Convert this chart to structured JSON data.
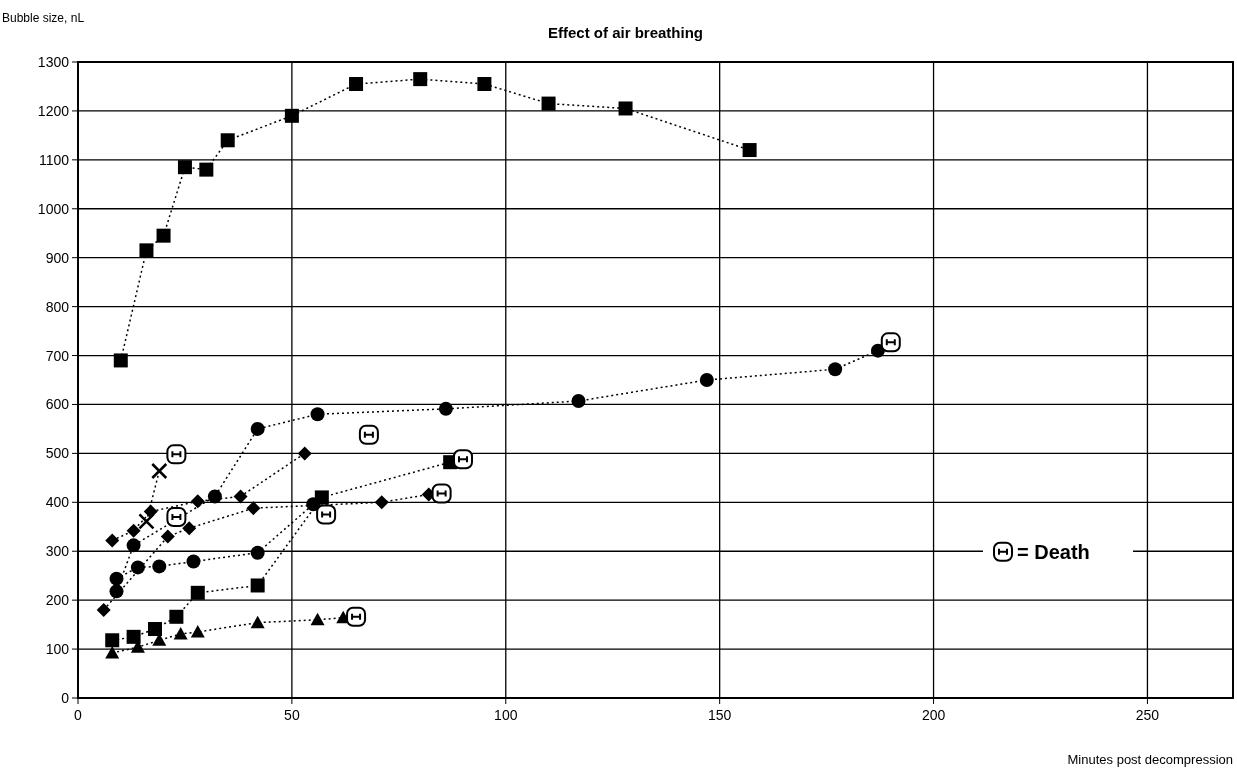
{
  "chart_data": {
    "type": "line",
    "title": "Effect of air breathing",
    "ylabel": "Bubble size, nL",
    "xlabel": "Minutes post decompression",
    "xlim": [
      0,
      270
    ],
    "xticks": [
      0,
      50,
      100,
      150,
      200,
      250
    ],
    "ylim": [
      0,
      1300
    ],
    "yticks": [
      0,
      100,
      200,
      300,
      400,
      500,
      600,
      700,
      800,
      900,
      1000,
      1100,
      1200,
      1300
    ],
    "grid": true,
    "legend": "right",
    "line_style": "dotted",
    "series": [
      {
        "color": "#000000",
        "marker": "square",
        "x": [
          10,
          16,
          20,
          25,
          30,
          35,
          50,
          65,
          80,
          95,
          110,
          128,
          157
        ],
        "values": [
          690,
          915,
          945,
          1085,
          1080,
          1140,
          1190,
          1255,
          1265,
          1255,
          1215,
          1205,
          1120
        ]
      },
      {
        "color": "#000000",
        "marker": "circle",
        "x": [
          9,
          13,
          32,
          42,
          56,
          86,
          117,
          147,
          177,
          187
        ],
        "values": [
          218,
          312,
          412,
          550,
          580,
          591,
          607,
          650,
          672,
          710
        ]
      },
      {
        "color": "#000000",
        "marker": "diamond",
        "x": [
          8,
          13,
          17,
          28,
          38,
          53
        ],
        "values": [
          322,
          342,
          381,
          402,
          412,
          500
        ]
      },
      {
        "color": "#000000",
        "marker": "cross",
        "x": [
          16,
          19
        ],
        "values": [
          361,
          464
        ]
      },
      {
        "color": "#000000",
        "marker": "square",
        "x": [
          8,
          13,
          18,
          23,
          28,
          42,
          57,
          87
        ],
        "values": [
          118,
          125,
          141,
          166,
          215,
          230,
          410,
          482
        ]
      },
      {
        "color": "#000000",
        "marker": "triangle",
        "x": [
          8,
          14,
          19,
          24,
          28,
          42,
          56,
          62
        ],
        "values": [
          92,
          104,
          118,
          131,
          135,
          154,
          160,
          164
        ]
      },
      {
        "color": "#000000",
        "marker": "diamond",
        "x": [
          6,
          21,
          26,
          41,
          55,
          71,
          82
        ],
        "values": [
          180,
          330,
          347,
          388,
          null,
          400,
          416
        ]
      },
      {
        "color": "#000000",
        "marker": "circle",
        "x": [
          9,
          14,
          19,
          27,
          42,
          55
        ],
        "values": [
          244,
          267,
          269,
          279,
          297,
          396
        ]
      },
      {
        "type": "scatter",
        "name": "= Death",
        "color": "#000000",
        "marker": "square",
        "x": [
          23,
          190,
          68,
          90,
          23,
          58,
          85,
          65
        ],
        "values": [
          498,
          727,
          538,
          488,
          370,
          375,
          418,
          166
        ]
      }
    ]
  }
}
